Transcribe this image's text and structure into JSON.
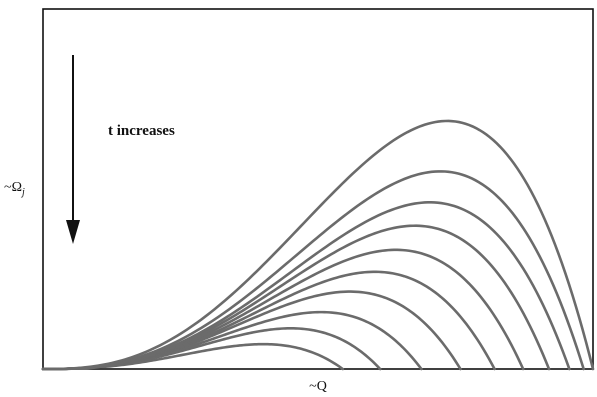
{
  "chart_data": {
    "type": "line",
    "title": "",
    "xlabel": "~Q",
    "ylabel_main": "~Ω",
    "ylabel_sub": "j",
    "xlim": [
      0,
      1
    ],
    "ylim": [
      0,
      1
    ],
    "grid": false,
    "legend": "none",
    "annotation": {
      "text": "t increases",
      "arrow_direction": "down"
    },
    "line_color": "#6b6b6b",
    "series": [
      {
        "x_end": 0.545,
        "y_max": 0.069
      },
      {
        "x_end": 0.613,
        "y_max": 0.113
      },
      {
        "x_end": 0.688,
        "y_max": 0.158
      },
      {
        "x_end": 0.759,
        "y_max": 0.215
      },
      {
        "x_end": 0.821,
        "y_max": 0.27
      },
      {
        "x_end": 0.873,
        "y_max": 0.331
      },
      {
        "x_end": 0.92,
        "y_max": 0.398
      },
      {
        "x_end": 0.957,
        "y_max": 0.463
      },
      {
        "x_end": 0.983,
        "y_max": 0.549
      },
      {
        "x_end": 1.0,
        "y_max": 0.689
      }
    ]
  }
}
